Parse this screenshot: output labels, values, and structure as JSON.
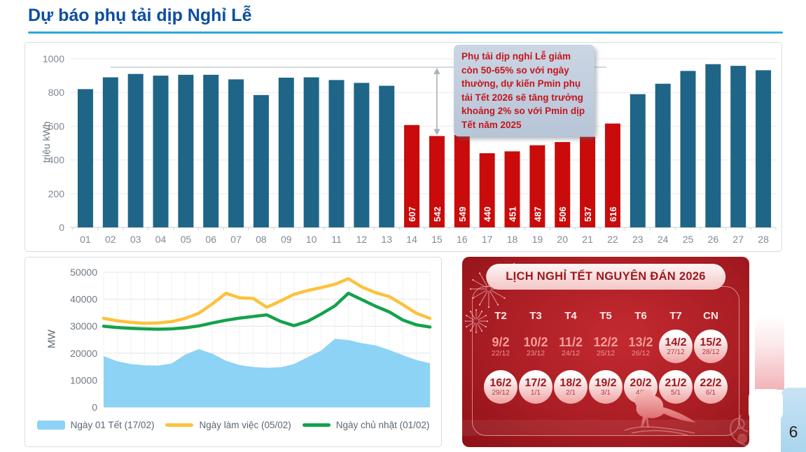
{
  "slide": {
    "title": "Dự báo phụ tải dịp Nghỉ Lễ",
    "page_number": "6",
    "title_color": "#0B4EA2",
    "underline_color": "#2BA7E0"
  },
  "annotation": {
    "text": "Phụ tải dịp nghỉ Lễ giảm còn 50-65% so với ngày thường, dự kiến Pmin phụ tải Tết 2026 sẽ tăng trưởng khoảng 2% so với Pmin dịp Tết năm 2025",
    "text_color": "#C4161C",
    "bg_color": "#C2CEDF"
  },
  "chart_data": [
    {
      "type": "bar",
      "title": "",
      "xlabel": "",
      "ylabel": "triệu kWh",
      "ylim": [
        0,
        1000
      ],
      "yticks": [
        0,
        200,
        400,
        600,
        800,
        1000
      ],
      "grid": true,
      "categories": [
        "01",
        "02",
        "03",
        "04",
        "05",
        "06",
        "07",
        "08",
        "09",
        "10",
        "11",
        "12",
        "13",
        "14",
        "15",
        "16",
        "17",
        "18",
        "19",
        "20",
        "21",
        "22",
        "23",
        "24",
        "25",
        "26",
        "27",
        "28"
      ],
      "values": [
        820,
        890,
        910,
        900,
        905,
        905,
        878,
        785,
        888,
        890,
        874,
        857,
        840,
        607,
        542,
        549,
        440,
        451,
        487,
        506,
        537,
        616,
        790,
        852,
        928,
        968,
        958,
        932
      ],
      "bar_color": "#1F6587",
      "highlight_color": "#C90B0B",
      "highlight_categories": [
        "14",
        "15",
        "16",
        "17",
        "18",
        "19",
        "20",
        "21",
        "22"
      ],
      "labels_on_highlight": true,
      "reference_line": {
        "value": 950,
        "from_category": "02",
        "to_category": "22"
      },
      "drop_arrow_at_category": "15"
    },
    {
      "type": "area-line",
      "title": "",
      "xlabel": "",
      "ylabel": "MW",
      "ylim": [
        0,
        50000
      ],
      "yticks": [
        0,
        10000,
        20000,
        30000,
        40000,
        50000
      ],
      "grid": true,
      "legend_position": "bottom",
      "x_hours": [
        0,
        1,
        2,
        3,
        4,
        5,
        6,
        7,
        8,
        9,
        10,
        11,
        12,
        13,
        14,
        15,
        16,
        17,
        18,
        19,
        20,
        21,
        22,
        23,
        24
      ],
      "series": [
        {
          "name": "Ngày 01 Tết (17/02)",
          "type": "area",
          "color": "#8CD3F5",
          "values": [
            18900,
            17000,
            16000,
            15500,
            15400,
            16200,
            19500,
            21500,
            19800,
            17200,
            15600,
            14900,
            14600,
            14800,
            16000,
            18500,
            21000,
            25300,
            24900,
            23700,
            22900,
            21200,
            19300,
            17500,
            16300
          ]
        },
        {
          "name": "Ngày làm việc (05/02)",
          "type": "line",
          "color": "#FCC23D",
          "values": [
            32900,
            32000,
            31400,
            31100,
            31200,
            31700,
            32900,
            34800,
            38300,
            42200,
            40500,
            40300,
            37000,
            39300,
            41800,
            43200,
            44300,
            45500,
            47600,
            44500,
            42400,
            41000,
            38000,
            34800,
            32900
          ]
        },
        {
          "name": "Ngày chủ nhật (01/02)",
          "type": "line",
          "color": "#12A34A",
          "values": [
            30000,
            29500,
            29200,
            29000,
            28900,
            29000,
            29400,
            30100,
            31200,
            32200,
            33000,
            33600,
            34200,
            31800,
            30200,
            31800,
            34500,
            37500,
            42200,
            39800,
            37400,
            35300,
            32300,
            30500,
            29700
          ]
        }
      ]
    }
  ],
  "calendar": {
    "title": "LỊCH NGHỈ TẾT NGUYÊN ĐÁN 2026",
    "day_headers": [
      "T2",
      "T3",
      "T4",
      "T5",
      "T6",
      "T7",
      "CN"
    ],
    "weeks": [
      [
        {
          "date": "9/2",
          "lunar": "22/12",
          "circled": false
        },
        {
          "date": "10/2",
          "lunar": "23/12",
          "circled": false
        },
        {
          "date": "11/2",
          "lunar": "24/12",
          "circled": false
        },
        {
          "date": "12/2",
          "lunar": "25/12",
          "circled": false
        },
        {
          "date": "13/2",
          "lunar": "26/12",
          "circled": false
        },
        {
          "date": "14/2",
          "lunar": "27/12",
          "circled": true
        },
        {
          "date": "15/2",
          "lunar": "28/12",
          "circled": true
        }
      ],
      [
        {
          "date": "16/2",
          "lunar": "29/12",
          "circled": true
        },
        {
          "date": "17/2",
          "lunar": "1/1",
          "circled": true
        },
        {
          "date": "18/2",
          "lunar": "2/1",
          "circled": true
        },
        {
          "date": "19/2",
          "lunar": "3/1",
          "circled": true
        },
        {
          "date": "20/2",
          "lunar": "4/1",
          "circled": true
        },
        {
          "date": "21/2",
          "lunar": "5/1",
          "circled": true
        },
        {
          "date": "22/2",
          "lunar": "6/1",
          "circled": true
        }
      ]
    ]
  }
}
